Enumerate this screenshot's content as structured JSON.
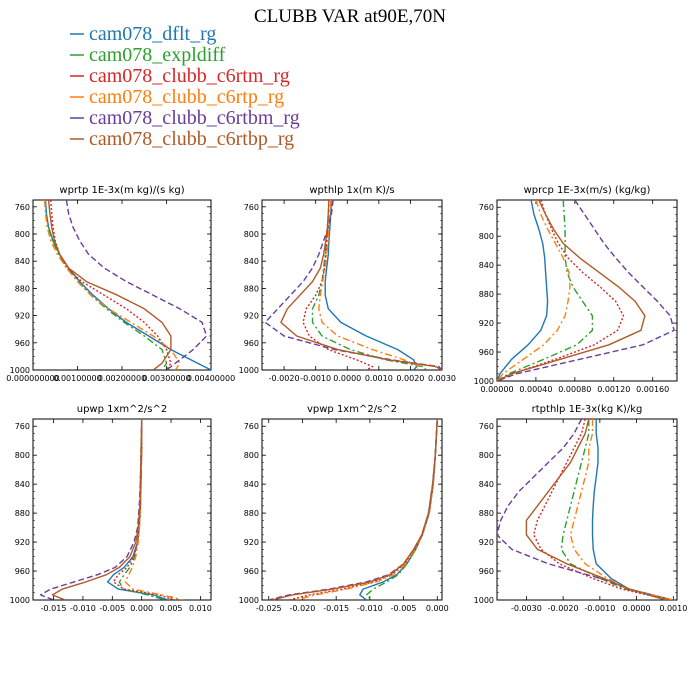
{
  "title": "CLUBB VAR at90E,70N",
  "legend": [
    {
      "name": "cam078_dflt_rg",
      "color": "#1f77b4",
      "dash": "solid"
    },
    {
      "name": "cam078_expldiff",
      "color": "#2ca02c",
      "dash": "dashdot"
    },
    {
      "name": "cam078_clubb_c6rtm_rg",
      "color": "#d62728",
      "dash": "dotted"
    },
    {
      "name": "cam078_clubb_c6rtp_rg",
      "color": "#ff7f0e",
      "dash": "dashdot"
    },
    {
      "name": "cam078_clubb_c6rtbm_rg",
      "color": "#6a3d9a",
      "dash": "dashed"
    },
    {
      "name": "cam078_clubb_c6rtbp_rg",
      "color": "#b05a28",
      "dash": "solid"
    }
  ],
  "chart_data": [
    {
      "type": "line",
      "title": "wprtp   1E-3x(m kg)/(s kg)",
      "xlim": [
        0,
        0.004
      ],
      "ylim": [
        1000,
        750
      ],
      "xticks": [
        0,
        0.001,
        0.002,
        0.003,
        0.004
      ],
      "xtick_labels": [
        "0.000000000",
        "0.00100000",
        "0.00200000",
        "0.00300000",
        "0.00400000"
      ],
      "yticks": [
        760,
        800,
        840,
        880,
        920,
        960,
        1000
      ],
      "y": [
        750,
        770,
        790,
        810,
        830,
        850,
        870,
        890,
        910,
        930,
        950,
        970,
        990,
        1000
      ],
      "series": [
        {
          "name": "cam078_dflt_rg",
          "x": [
            0.00028,
            0.0003,
            0.00035,
            0.00045,
            0.0006,
            0.0008,
            0.00105,
            0.00135,
            0.0017,
            0.0021,
            0.0026,
            0.0031,
            0.0037,
            0.004
          ]
        },
        {
          "name": "cam078_expldiff",
          "x": [
            0.00027,
            0.00029,
            0.00034,
            0.00044,
            0.00058,
            0.00078,
            0.00102,
            0.0013,
            0.00165,
            0.00205,
            0.0025,
            0.0029,
            0.003,
            0.0029
          ]
        },
        {
          "name": "cam078_clubb_c6rtm_rg",
          "x": [
            0.0004,
            0.00042,
            0.00045,
            0.0005,
            0.0006,
            0.00075,
            0.0011,
            0.0016,
            0.0021,
            0.0025,
            0.0028,
            0.003,
            0.0031,
            0.003
          ]
        },
        {
          "name": "cam078_clubb_c6rtp_rg",
          "x": [
            0.00026,
            0.00028,
            0.00032,
            0.0004,
            0.00055,
            0.00075,
            0.001,
            0.0013,
            0.0017,
            0.0022,
            0.0027,
            0.0031,
            0.0033,
            0.0032
          ]
        },
        {
          "name": "cam078_clubb_c6rtbm_rg",
          "x": [
            0.00075,
            0.0008,
            0.0009,
            0.00105,
            0.00125,
            0.0016,
            0.0021,
            0.0027,
            0.0033,
            0.0038,
            0.0039,
            0.0036,
            0.0032,
            0.003
          ]
        },
        {
          "name": "cam078_clubb_c6rtbp_rg",
          "x": [
            0.00035,
            0.00038,
            0.00042,
            0.00048,
            0.0006,
            0.0008,
            0.0012,
            0.0019,
            0.0025,
            0.0029,
            0.0031,
            0.0031,
            0.0029,
            0.0027
          ]
        }
      ]
    },
    {
      "type": "line",
      "title": "wpthlp   1x(m K)/s",
      "xlim": [
        -0.0027,
        0.003
      ],
      "ylim": [
        1000,
        750
      ],
      "xticks": [
        -0.002,
        -0.001,
        0,
        0.001,
        0.002,
        0.003
      ],
      "xtick_labels": [
        "-0.0020",
        "-0.0010",
        "0.0000",
        "0.0010",
        "0.0020",
        "0.0030"
      ],
      "yticks": [
        760,
        800,
        840,
        880,
        920,
        960,
        1000
      ],
      "y": [
        750,
        770,
        790,
        810,
        830,
        850,
        870,
        890,
        910,
        930,
        950,
        970,
        985,
        995,
        1000
      ],
      "series": [
        {
          "name": "cam078_dflt_rg",
          "x": [
            -0.0005,
            -0.00052,
            -0.00055,
            -0.00058,
            -0.0006,
            -0.00065,
            -0.0007,
            -0.0007,
            -0.0006,
            -0.0002,
            0.0006,
            0.0016,
            0.0021,
            0.0022,
            0.0021
          ]
        },
        {
          "name": "cam078_expldiff",
          "x": [
            -0.0005,
            -0.00055,
            -0.0006,
            -0.00065,
            -0.0007,
            -0.00075,
            -0.0008,
            -0.0009,
            -0.0011,
            -0.0011,
            -0.0008,
            0.0001,
            0.0012,
            0.0024,
            0.0025
          ]
        },
        {
          "name": "cam078_clubb_c6rtm_rg",
          "x": [
            -0.00058,
            -0.0006,
            -0.00063,
            -0.00065,
            -0.00068,
            -0.00072,
            -0.0008,
            -0.001,
            -0.0013,
            -0.0014,
            -0.0012,
            -0.0006,
            0.0003,
            0.0008,
            0.0006
          ]
        },
        {
          "name": "cam078_clubb_c6rtp_rg",
          "x": [
            -0.00052,
            -0.00055,
            -0.00058,
            -0.0006,
            -0.00065,
            -0.0007,
            -0.00078,
            -0.00085,
            -0.0009,
            -0.0008,
            -0.0003,
            0.0008,
            0.0018,
            0.0023,
            0.0022
          ]
        },
        {
          "name": "cam078_clubb_c6rtbm_rg",
          "x": [
            -0.00045,
            -0.0005,
            -0.0006,
            -0.00075,
            -0.0009,
            -0.0011,
            -0.0014,
            -0.0018,
            -0.0022,
            -0.0026,
            -0.002,
            -0.0004,
            0.0014,
            0.0029,
            0.003
          ]
        },
        {
          "name": "cam078_clubb_c6rtbp_rg",
          "x": [
            -0.00058,
            -0.0006,
            -0.00063,
            -0.00068,
            -0.00075,
            -0.00085,
            -0.0011,
            -0.0015,
            -0.0019,
            -0.0021,
            -0.0016,
            -0.0003,
            0.0013,
            0.0028,
            0.003
          ]
        }
      ]
    },
    {
      "type": "line",
      "title": "wprcp   1E-3x(m/s) (kg/kg)",
      "xlim": [
        0,
        0.00185
      ],
      "ylim": [
        1000,
        750
      ],
      "xticks": [
        0,
        0.0004,
        0.0008,
        0.0012,
        0.0016
      ],
      "xtick_labels": [
        "0.00000",
        "0.00040",
        "0.00080",
        "0.00120",
        "0.00160"
      ],
      "yticks": [
        760,
        800,
        840,
        880,
        920,
        960,
        1000
      ],
      "y": [
        750,
        770,
        790,
        810,
        830,
        850,
        870,
        890,
        910,
        930,
        950,
        970,
        990,
        1000
      ],
      "series": [
        {
          "name": "cam078_dflt_rg",
          "x": [
            0.00035,
            0.00038,
            0.00043,
            0.00047,
            0.00049,
            0.0005,
            0.00051,
            0.00052,
            0.00051,
            0.00045,
            0.00032,
            0.00015,
            3e-05,
            0
          ]
        },
        {
          "name": "cam078_expldiff",
          "x": [
            0.00068,
            0.00069,
            0.0007,
            0.0007,
            0.0007,
            0.00072,
            0.00078,
            0.00088,
            0.00098,
            0.00098,
            0.00082,
            0.00048,
            0.00012,
            0
          ]
        },
        {
          "name": "cam078_clubb_c6rtm_rg",
          "x": [
            0.00045,
            0.0005,
            0.00056,
            0.00063,
            0.00073,
            0.00088,
            0.00106,
            0.00122,
            0.0013,
            0.00124,
            0.001,
            0.0006,
            0.00015,
            0
          ]
        },
        {
          "name": "cam078_clubb_c6rtp_rg",
          "x": [
            0.0004,
            0.00045,
            0.00052,
            0.0006,
            0.00068,
            0.00074,
            0.00075,
            0.00073,
            0.0007,
            0.00062,
            0.00048,
            0.00027,
            6e-05,
            0
          ]
        },
        {
          "name": "cam078_clubb_c6rtbm_rg",
          "x": [
            0.0008,
            0.0009,
            0.001,
            0.0011,
            0.00122,
            0.00135,
            0.0015,
            0.00165,
            0.00178,
            0.00182,
            0.0015,
            0.00085,
            0.0002,
            0
          ]
        },
        {
          "name": "cam078_clubb_c6rtbp_rg",
          "x": [
            0.00043,
            0.0005,
            0.00058,
            0.00068,
            0.00085,
            0.00105,
            0.00125,
            0.00142,
            0.00152,
            0.00148,
            0.00115,
            0.00065,
            0.00015,
            0
          ]
        }
      ]
    },
    {
      "type": "line",
      "title": "upwp   1xm^2/s^2",
      "xlim": [
        -0.0185,
        0.0118
      ],
      "ylim": [
        1000,
        750
      ],
      "xticks": [
        -0.015,
        -0.01,
        -0.005,
        0,
        0.005,
        0.01
      ],
      "xtick_labels": [
        "-0.015",
        "-0.010",
        "-0.005",
        "0.000",
        "0.005",
        "0.010"
      ],
      "yticks": [
        760,
        800,
        840,
        880,
        920,
        960,
        1000
      ],
      "y": [
        750,
        790,
        830,
        870,
        900,
        920,
        940,
        955,
        965,
        975,
        985,
        993,
        1000
      ],
      "series": [
        {
          "name": "cam078_dflt_rg",
          "x": [
            0,
            0,
            -0.0001,
            -0.0002,
            -0.0004,
            -0.0007,
            -0.0015,
            -0.003,
            -0.0048,
            -0.0058,
            -0.004,
            0.002,
            0.0045
          ]
        },
        {
          "name": "cam078_expldiff",
          "x": [
            0,
            0,
            -0.0001,
            -0.0002,
            -0.0004,
            -0.0007,
            -0.0012,
            -0.002,
            -0.003,
            -0.0038,
            -0.0032,
            0.001,
            0.004
          ]
        },
        {
          "name": "cam078_clubb_c6rtm_rg",
          "x": [
            0,
            0,
            -0.0001,
            -0.0002,
            -0.0004,
            -0.0007,
            -0.0013,
            -0.0025,
            -0.004,
            -0.0048,
            -0.003,
            0.003,
            0.0055
          ]
        },
        {
          "name": "cam078_clubb_c6rtp_rg",
          "x": [
            0,
            0,
            -0.0001,
            -0.0002,
            -0.0004,
            -0.0006,
            -0.001,
            -0.0016,
            -0.0022,
            -0.0028,
            -0.0015,
            0.0035,
            0.007
          ]
        },
        {
          "name": "cam078_clubb_c6rtbm_rg",
          "x": [
            0,
            -0.0001,
            -0.0002,
            -0.0004,
            -0.0007,
            -0.0013,
            -0.0025,
            -0.0045,
            -0.0075,
            -0.0115,
            -0.0155,
            -0.0172,
            -0.015
          ]
        },
        {
          "name": "cam078_clubb_c6rtbp_rg",
          "x": [
            0,
            -0.0001,
            -0.0002,
            -0.0003,
            -0.0006,
            -0.001,
            -0.002,
            -0.0038,
            -0.006,
            -0.0095,
            -0.0135,
            -0.0152,
            -0.013
          ]
        }
      ]
    },
    {
      "type": "line",
      "title": "vpwp   1xm^2/s^2",
      "xlim": [
        -0.026,
        0.0007
      ],
      "ylim": [
        1000,
        750
      ],
      "xticks": [
        -0.025,
        -0.02,
        -0.015,
        -0.01,
        -0.005,
        0
      ],
      "xtick_labels": [
        "-0.025",
        "-0.020",
        "-0.015",
        "-0.010",
        "-0.005",
        "0.000"
      ],
      "yticks": [
        760,
        800,
        840,
        880,
        920,
        960,
        1000
      ],
      "y": [
        750,
        800,
        840,
        880,
        910,
        930,
        950,
        965,
        975,
        985,
        993,
        1000
      ],
      "series": [
        {
          "name": "cam078_dflt_rg",
          "x": [
            0,
            -0.0003,
            -0.0006,
            -0.0012,
            -0.0022,
            -0.0032,
            -0.0045,
            -0.006,
            -0.008,
            -0.011,
            -0.0115,
            -0.0105
          ]
        },
        {
          "name": "cam078_expldiff",
          "x": [
            0,
            -0.0003,
            -0.0006,
            -0.0012,
            -0.0022,
            -0.0032,
            -0.0045,
            -0.0058,
            -0.0075,
            -0.0095,
            -0.0105,
            -0.0098
          ]
        },
        {
          "name": "cam078_clubb_c6rtm_rg",
          "x": [
            0,
            -0.0003,
            -0.0006,
            -0.0012,
            -0.0022,
            -0.0033,
            -0.0048,
            -0.0068,
            -0.0095,
            -0.014,
            -0.019,
            -0.022
          ]
        },
        {
          "name": "cam078_clubb_c6rtp_rg",
          "x": [
            0,
            -0.0003,
            -0.0006,
            -0.0012,
            -0.0022,
            -0.0033,
            -0.0047,
            -0.0065,
            -0.009,
            -0.0135,
            -0.018,
            -0.021
          ]
        },
        {
          "name": "cam078_clubb_c6rtbm_rg",
          "x": [
            0,
            -0.0003,
            -0.0007,
            -0.0013,
            -0.0023,
            -0.0035,
            -0.005,
            -0.0072,
            -0.0105,
            -0.016,
            -0.022,
            -0.025
          ]
        },
        {
          "name": "cam078_clubb_c6rtbp_rg",
          "x": [
            0,
            -0.0003,
            -0.0007,
            -0.0013,
            -0.0023,
            -0.0035,
            -0.005,
            -0.007,
            -0.01,
            -0.0155,
            -0.0215,
            -0.0245
          ]
        }
      ]
    },
    {
      "type": "line",
      "title": "rtpthlp   1E-3x(kg K)/kg",
      "xlim": [
        -0.0038,
        0.0011
      ],
      "ylim": [
        1000,
        750
      ],
      "xticks": [
        -0.003,
        -0.002,
        -0.001,
        0,
        0.001
      ],
      "xtick_labels": [
        "-0.0030",
        "-0.0020",
        "-0.0010",
        "0.0000",
        "0.0010"
      ],
      "yticks": [
        760,
        800,
        840,
        880,
        920,
        960,
        1000
      ],
      "y": [
        750,
        770,
        790,
        810,
        830,
        850,
        870,
        890,
        910,
        930,
        950,
        970,
        985,
        1000
      ],
      "series": [
        {
          "name": "cam078_dflt_rg",
          "x": [
            -0.0011,
            -0.0011,
            -0.00105,
            -0.00105,
            -0.0011,
            -0.00115,
            -0.00118,
            -0.0012,
            -0.0012,
            -0.00118,
            -0.0011,
            -0.0007,
            -0.0002,
            0.001
          ]
        },
        {
          "name": "cam078_expldiff",
          "x": [
            -0.0013,
            -0.0013,
            -0.0014,
            -0.0015,
            -0.0016,
            -0.0017,
            -0.0018,
            -0.0019,
            -0.002,
            -0.00205,
            -0.0018,
            -0.001,
            -0.0003,
            0.001
          ]
        },
        {
          "name": "cam078_clubb_c6rtm_rg",
          "x": [
            -0.0014,
            -0.0015,
            -0.0017,
            -0.0019,
            -0.0021,
            -0.0023,
            -0.0025,
            -0.0027,
            -0.0028,
            -0.0026,
            -0.0021,
            -0.0012,
            -0.0004,
            0.0009
          ]
        },
        {
          "name": "cam078_clubb_c6rtp_rg",
          "x": [
            -0.0012,
            -0.0012,
            -0.0013,
            -0.0013,
            -0.0014,
            -0.0015,
            -0.0016,
            -0.0017,
            -0.0018,
            -0.0017,
            -0.0014,
            -0.0008,
            -0.0002,
            0.001
          ]
        },
        {
          "name": "cam078_clubb_c6rtbm_rg",
          "x": [
            -0.0015,
            -0.0017,
            -0.002,
            -0.0024,
            -0.0028,
            -0.0032,
            -0.0035,
            -0.0037,
            -0.0038,
            -0.0034,
            -0.0024,
            -0.001,
            -0.0002,
            0.0008
          ]
        },
        {
          "name": "cam078_clubb_c6rtbp_rg",
          "x": [
            -0.0013,
            -0.0014,
            -0.0016,
            -0.0018,
            -0.0021,
            -0.0024,
            -0.0027,
            -0.003,
            -0.003,
            -0.0027,
            -0.0019,
            -0.0009,
            -0.0002,
            0.0008
          ]
        }
      ]
    }
  ]
}
